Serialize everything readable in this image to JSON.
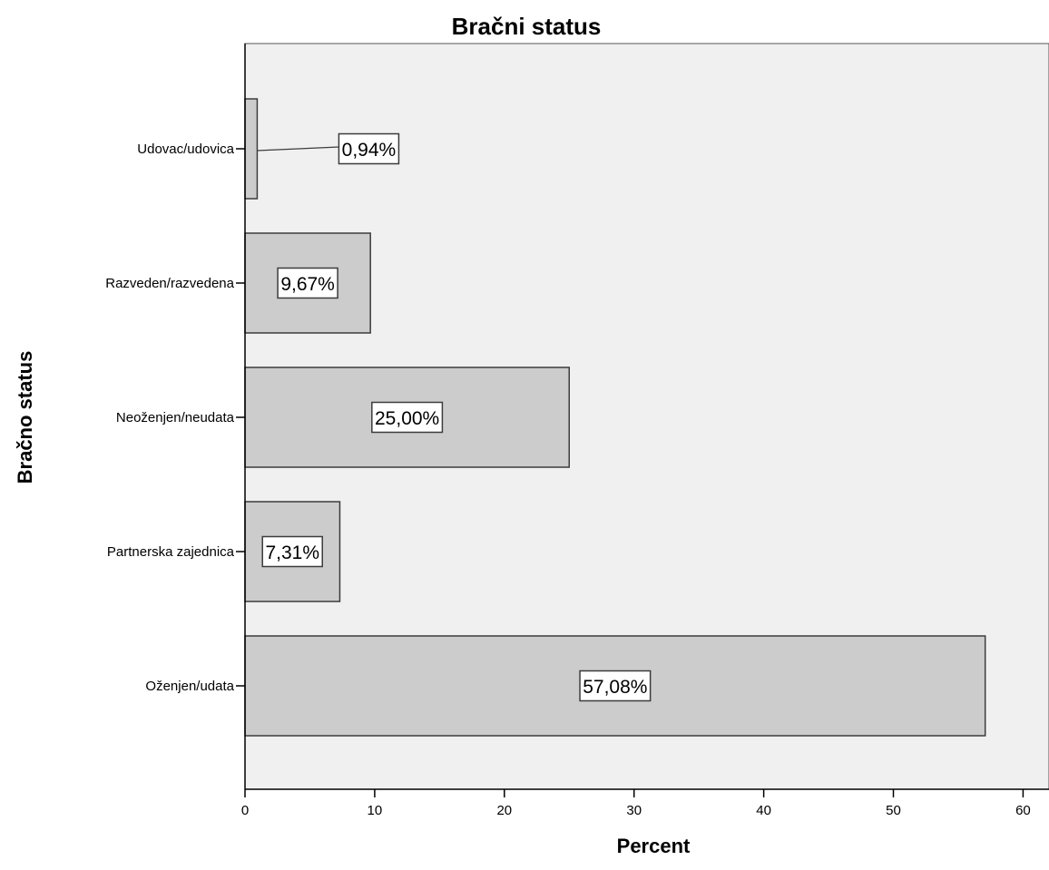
{
  "chart_data": {
    "type": "bar",
    "orientation": "horizontal",
    "title": "Bračni status",
    "xlabel": "Percent",
    "ylabel": "Bračno status",
    "categories": [
      "Udovac/udovica",
      "Razveden/razvedena",
      "Neoženjen/neudata",
      "Partnerska zajednica",
      "Oženjen/udata"
    ],
    "values": [
      0.94,
      9.67,
      25.0,
      7.31,
      57.08
    ],
    "data_labels": [
      "0,94%",
      "9,67%",
      "25,00%",
      "7,31%",
      "57,08%"
    ],
    "xlim": [
      0,
      62
    ],
    "xticks": [
      0,
      10,
      20,
      30,
      40,
      50,
      60
    ],
    "xtick_labels": [
      "0",
      "10",
      "20",
      "30",
      "40",
      "50",
      "60"
    ],
    "grid": false,
    "colors": {
      "plot_background": "#f0f0f0",
      "bar_fill": "#cccccc",
      "bar_stroke": "#3c3c3c",
      "label_box": "#ffffff"
    }
  }
}
